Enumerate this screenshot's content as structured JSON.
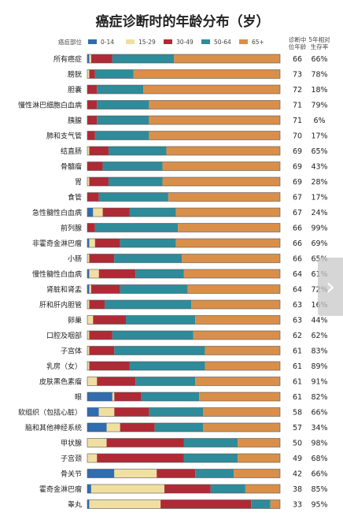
{
  "chart_data": {
    "type": "bar",
    "stacked": true,
    "orientation": "horizontal",
    "title": "癌症诊断时的年龄分布（岁）",
    "category_header": "癌症部位",
    "col_median_header_l1": "诊断中",
    "col_median_header_l2": "位年龄",
    "col_survival_header_l1": "5年相对",
    "col_survival_header_l2": "生存率",
    "xlim": [
      0,
      100
    ],
    "legend_position": "top",
    "series": [
      {
        "name": "0-14",
        "color": "#2f6db0"
      },
      {
        "name": "15-29",
        "color": "#f0dfa0"
      },
      {
        "name": "30-49",
        "color": "#b02a36"
      },
      {
        "name": "50-64",
        "color": "#2e8b9a"
      },
      {
        "name": "65+",
        "color": "#d98f4a"
      }
    ],
    "rows": [
      {
        "label": "所有癌症",
        "values": [
          1,
          1,
          11,
          32,
          55
        ],
        "median": "66",
        "survival": "66%"
      },
      {
        "label": "膀胱",
        "values": [
          0,
          1,
          3,
          20,
          76
        ],
        "median": "73",
        "survival": "78%"
      },
      {
        "label": "胆囊",
        "values": [
          0,
          0,
          5,
          24,
          71
        ],
        "median": "72",
        "survival": "18%"
      },
      {
        "label": "慢性淋巴细胞白血病",
        "values": [
          0,
          0,
          5,
          27,
          68
        ],
        "median": "71",
        "survival": "79%"
      },
      {
        "label": "胰腺",
        "values": [
          0,
          0,
          5,
          27,
          68
        ],
        "median": "71",
        "survival": "6%"
      },
      {
        "label": "肺和支气管",
        "values": [
          0,
          0,
          4,
          28,
          68
        ],
        "median": "70",
        "survival": "17%"
      },
      {
        "label": "结直肠",
        "values": [
          0,
          1,
          10,
          30,
          59
        ],
        "median": "69",
        "survival": "65%"
      },
      {
        "label": "骨髓瘤",
        "values": [
          0,
          0,
          8,
          31,
          61
        ],
        "median": "69",
        "survival": "43%"
      },
      {
        "label": "胃",
        "values": [
          0,
          1,
          10,
          28,
          61
        ],
        "median": "69",
        "survival": "28%"
      },
      {
        "label": "食管",
        "values": [
          0,
          0,
          6,
          36,
          58
        ],
        "median": "67",
        "survival": "17%"
      },
      {
        "label": "急性髓性白血病",
        "values": [
          3,
          5,
          14,
          24,
          54
        ],
        "median": "67",
        "survival": "24%"
      },
      {
        "label": "前列腺",
        "values": [
          0,
          0,
          4,
          43,
          53
        ],
        "median": "66",
        "survival": "99%"
      },
      {
        "label": "非霍奇金淋巴瘤",
        "values": [
          1,
          3,
          13,
          29,
          54
        ],
        "median": "66",
        "survival": "69%"
      },
      {
        "label": "小肠",
        "values": [
          0,
          1,
          13,
          35,
          51
        ],
        "median": "66",
        "survival": "65%"
      },
      {
        "label": "慢性髓性白血病",
        "values": [
          1,
          5,
          19,
          25,
          50
        ],
        "median": "64",
        "survival": "61%"
      },
      {
        "label": "肾脏和肾盂",
        "values": [
          1,
          1,
          15,
          35,
          48
        ],
        "median": "64",
        "survival": "72%"
      },
      {
        "label": "肝和肝内胆管",
        "values": [
          0,
          1,
          8,
          45,
          46
        ],
        "median": "63",
        "survival": "16%"
      },
      {
        "label": "卵巢",
        "values": [
          0,
          3,
          17,
          36,
          44
        ],
        "median": "63",
        "survival": "44%"
      },
      {
        "label": "口腔及咽部",
        "values": [
          0,
          1,
          12,
          42,
          45
        ],
        "median": "62",
        "survival": "62%"
      },
      {
        "label": "子宫体",
        "values": [
          0,
          1,
          13,
          47,
          39
        ],
        "median": "61",
        "survival": "83%"
      },
      {
        "label": "乳房（女）",
        "values": [
          0,
          1,
          21,
          39,
          39
        ],
        "median": "61",
        "survival": "89%"
      },
      {
        "label": "皮肤黑色素瘤",
        "values": [
          0,
          5,
          20,
          31,
          44
        ],
        "median": "61",
        "survival": "91%"
      },
      {
        "label": "眼",
        "values": [
          13,
          1,
          14,
          30,
          42
        ],
        "median": "61",
        "survival": "82%"
      },
      {
        "label": "软组织（包括心脏）",
        "values": [
          6,
          8,
          18,
          28,
          40
        ],
        "median": "58",
        "survival": "66%"
      },
      {
        "label": "脑和其他神经系统",
        "values": [
          10,
          7,
          18,
          25,
          40
        ],
        "median": "57",
        "survival": "34%"
      },
      {
        "label": "甲状腺",
        "values": [
          0,
          10,
          40,
          28,
          22
        ],
        "median": "50",
        "survival": "98%"
      },
      {
        "label": "子宫颈",
        "values": [
          0,
          5,
          45,
          28,
          22
        ],
        "median": "49",
        "survival": "68%"
      },
      {
        "label": "骨关节",
        "values": [
          14,
          22,
          20,
          20,
          24
        ],
        "median": "42",
        "survival": "66%"
      },
      {
        "label": "霍奇金淋巴瘤",
        "values": [
          2,
          38,
          24,
          18,
          18
        ],
        "median": "38",
        "survival": "85%"
      },
      {
        "label": "睾丸",
        "values": [
          1,
          37,
          47,
          10,
          5
        ],
        "median": "33",
        "survival": "95%"
      }
    ]
  },
  "ui": {
    "next_arrow": "›"
  }
}
